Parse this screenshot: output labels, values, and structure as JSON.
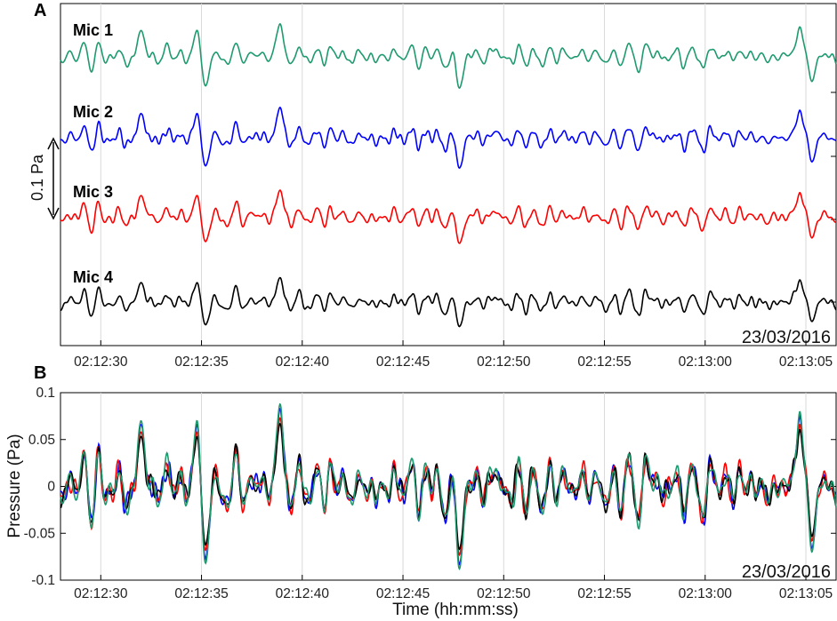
{
  "panels": {
    "a": {
      "letter": "A"
    },
    "b": {
      "letter": "B"
    }
  },
  "date": "23/03/2016",
  "scale_bar": {
    "label": "0.1 Pa",
    "value_pa": 0.1
  },
  "chart_data": [
    {
      "type": "line",
      "panel": "A",
      "title": "",
      "xlabel": "",
      "ylabel": "",
      "note": "",
      "series": [
        {
          "name": "Mic 1",
          "color": "#1f9a6f"
        },
        {
          "name": "Mic 2",
          "color": "#0000ff"
        },
        {
          "name": "Mic 3",
          "color": "#ff0000"
        },
        {
          "name": "Mic 4",
          "color": "#000000"
        }
      ],
      "x_ticks": [
        "02:12:30",
        "02:12:35",
        "02:12:40",
        "02:12:45",
        "02:12:50",
        "02:12:55",
        "02:13:00",
        "02:13:05"
      ],
      "x_start": "02:12:28",
      "x_end": "02:13:06.5",
      "grid": "vertical",
      "stacked_offsets": true
    },
    {
      "type": "line",
      "panel": "B",
      "xlabel": "Time (hh:mm:ss)",
      "ylabel": "Pressure (Pa)",
      "ylim": [
        -0.1,
        0.1
      ],
      "y_ticks": [
        "-0.1",
        "-0.05",
        "0",
        "0.05",
        "0.1"
      ],
      "x_ticks": [
        "02:12:30",
        "02:12:35",
        "02:12:40",
        "02:12:45",
        "02:12:50",
        "02:12:55",
        "02:13:00",
        "02:13:05"
      ],
      "x_start": "02:12:28",
      "x_end": "02:13:06.5",
      "grid": "vertical",
      "series": [
        {
          "name": "Mic 2",
          "color": "#0000ff"
        },
        {
          "name": "Mic 3",
          "color": "#ff0000"
        },
        {
          "name": "Mic 4",
          "color": "#000000"
        },
        {
          "name": "Mic 1",
          "color": "#1f9a6f"
        }
      ],
      "approx_peaks": [
        {
          "t": "02:12:32",
          "p": 0.07
        },
        {
          "t": "02:12:34.8",
          "p": 0.075
        },
        {
          "t": "02:12:35.2",
          "p": -0.082
        },
        {
          "t": "02:12:38.9",
          "p": 0.088
        },
        {
          "t": "02:12:47.8",
          "p": -0.088
        },
        {
          "t": "02:13:04.7",
          "p": 0.08
        },
        {
          "t": "02:13:05.3",
          "p": -0.07
        }
      ]
    }
  ]
}
